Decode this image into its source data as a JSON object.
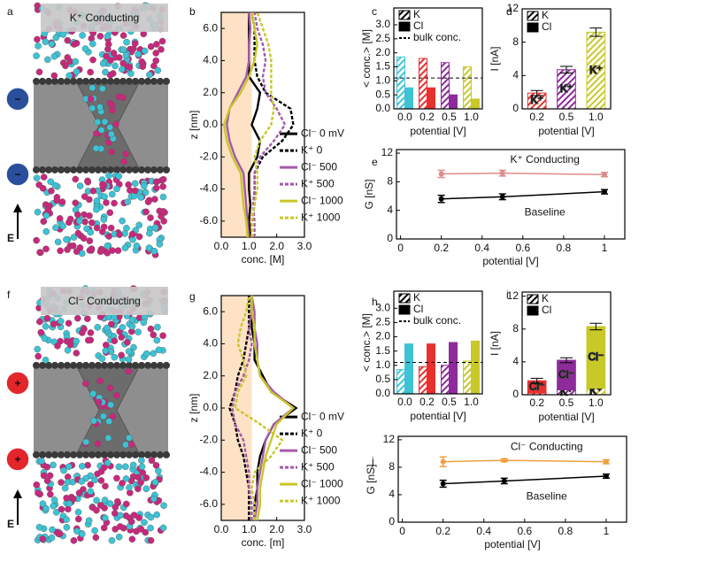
{
  "chart_data": [
    {
      "type": "image",
      "panel": "a",
      "title": "K⁺ Conducting",
      "field_label": "E",
      "badge_sign": "−",
      "badge_color": "#2a4f9c"
    },
    {
      "type": "profile",
      "panel": "b",
      "xlabel": "conc. [M]",
      "ylabel": "z [nm]",
      "xlim": [
        0,
        3
      ],
      "xticks": [
        {
          "value": 0,
          "label": "0.0"
        },
        {
          "value": 1,
          "label": "1.0"
        },
        {
          "value": 2,
          "label": "2.0"
        },
        {
          "value": 3,
          "label": "3.0"
        }
      ],
      "ylim": [
        -7,
        7
      ],
      "yticks": [
        {
          "value": 6,
          "label": "6.0"
        },
        {
          "value": 4,
          "label": "4.0"
        },
        {
          "value": 2,
          "label": "2.0"
        },
        {
          "value": 0,
          "label": "0.0"
        },
        {
          "value": -2,
          "label": "-2.0"
        },
        {
          "value": -4,
          "label": "-4.0"
        },
        {
          "value": -6,
          "label": "-6.0"
        }
      ],
      "shade": {
        "x": [
          0,
          1.1
        ],
        "color": "#fde2c6"
      },
      "z": [
        -7,
        -6,
        -5,
        -4,
        -3,
        -2,
        -1,
        0,
        1,
        2,
        3,
        4,
        5,
        6,
        7
      ],
      "series": [
        {
          "name": "Cl⁻ 0 mV",
          "color": "#000000",
          "dash": false,
          "values": [
            1.05,
            1.0,
            1.05,
            1.0,
            1.0,
            1.3,
            1.4,
            1.1,
            1.3,
            1.4,
            1.0,
            1.0,
            1.0,
            1.0,
            1.0
          ]
        },
        {
          "name": "K⁺ 0",
          "color": "#000000",
          "dash": true,
          "values": [
            1.05,
            1.1,
            1.2,
            1.2,
            1.2,
            1.5,
            2.2,
            2.6,
            2.5,
            1.6,
            1.3,
            1.2,
            1.2,
            1.2,
            1.1
          ]
        },
        {
          "name": "Cl⁻ 500",
          "color": "#a45aa8",
          "dash": false,
          "values": [
            1.0,
            0.95,
            0.9,
            0.85,
            0.8,
            0.5,
            0.3,
            0.2,
            0.3,
            0.6,
            0.9,
            1.0,
            1.0,
            1.05,
            1.0
          ]
        },
        {
          "name": "K⁺ 500",
          "color": "#a45aa8",
          "dash": true,
          "values": [
            1.2,
            1.2,
            1.15,
            1.2,
            1.2,
            1.4,
            1.9,
            2.3,
            2.0,
            1.6,
            1.5,
            1.6,
            1.5,
            1.3,
            1.2
          ]
        },
        {
          "name": "Cl⁻ 1000",
          "color": "#c9c62a",
          "dash": false,
          "values": [
            0.95,
            0.9,
            0.8,
            0.75,
            0.7,
            0.4,
            0.2,
            0.1,
            0.3,
            0.7,
            1.0,
            1.2,
            1.3,
            1.2,
            1.1
          ]
        },
        {
          "name": "K⁺ 1000",
          "color": "#c9c62a",
          "dash": true,
          "values": [
            1.1,
            1.1,
            1.2,
            1.3,
            1.3,
            1.2,
            1.4,
            1.8,
            1.9,
            1.8,
            1.8,
            1.8,
            1.7,
            1.5,
            1.3
          ]
        }
      ]
    },
    {
      "type": "bar",
      "panel": "c",
      "xlabel": "potential [V]",
      "ylabel": "< conc.> [M]",
      "categories": [
        "0.0",
        "0.2",
        "0.5",
        "1.0"
      ],
      "category_colors": [
        "#3ec3d5",
        "#e8302e",
        "#8e2a9a",
        "#c8c829"
      ],
      "ylim": [
        0,
        3.6
      ],
      "yticks": [
        {
          "value": 0,
          "label": "0.0"
        },
        0.5,
        {
          "value": 1,
          "label": "1.0"
        },
        1.5,
        {
          "value": 2,
          "label": "2.0"
        },
        2.5,
        {
          "value": 3,
          "label": "3.0"
        }
      ],
      "series": [
        {
          "name": "K",
          "pattern": "hatch",
          "values": [
            1.85,
            1.8,
            1.65,
            1.5
          ]
        },
        {
          "name": "Cl",
          "pattern": "solid",
          "values": [
            0.75,
            0.75,
            0.5,
            0.35
          ]
        }
      ],
      "reference": {
        "label": "bulk conc.",
        "value": 1.1
      }
    },
    {
      "type": "stacked_bar",
      "panel": "d",
      "xlabel": "potential [V]",
      "ylabel": "I [nA]",
      "categories": [
        "0.2",
        "0.5",
        "1.0"
      ],
      "category_colors": [
        "#e8302e",
        "#8e2a9a",
        "#c8c829"
      ],
      "ylim": [
        0,
        12
      ],
      "yticks": [
        0,
        4,
        8,
        12
      ],
      "series": [
        {
          "name": "K",
          "pattern": "hatch",
          "values": [
            1.9,
            4.7,
            9.2
          ],
          "labels": [
            "K⁺",
            "K⁺",
            "K⁺"
          ]
        },
        {
          "name": "Cl",
          "pattern": "solid",
          "values": [
            0,
            0,
            0
          ],
          "errors": [
            0.3,
            0.4,
            0.5
          ]
        }
      ]
    },
    {
      "type": "line",
      "panel": "e",
      "xlabel": "potential [V]",
      "ylabel": "G [nS]",
      "xlim": [
        -0.02,
        1.1
      ],
      "xticks": [
        0,
        0.2,
        0.4,
        0.6,
        0.8,
        1
      ],
      "ylim": [
        0,
        12.5
      ],
      "yticks": [
        0,
        4,
        8,
        12
      ],
      "x": [
        0.2,
        0.5,
        1
      ],
      "series": [
        {
          "name": "K⁺ Conducting",
          "color": "#e08a8a",
          "values": [
            9.1,
            9.2,
            9.0
          ],
          "errors": [
            0.5,
            0.4,
            0.3
          ]
        },
        {
          "name": "Baseline",
          "color": "#000000",
          "values": [
            5.6,
            5.9,
            6.6
          ],
          "errors": [
            0.5,
            0.4,
            0.3
          ]
        }
      ]
    },
    {
      "type": "image",
      "panel": "f",
      "title": "Cl⁻ Conducting",
      "field_label": "E",
      "badge_sign": "+",
      "badge_color": "#e3262b"
    },
    {
      "type": "profile",
      "panel": "g",
      "xlabel": "conc. [m]",
      "ylabel": "z [nm]",
      "xlim": [
        0,
        3
      ],
      "xticks": [
        {
          "value": 0,
          "label": "0.0"
        },
        {
          "value": 1,
          "label": "1.0"
        },
        {
          "value": 2,
          "label": "2.0"
        },
        {
          "value": 3,
          "label": "3.0"
        }
      ],
      "ylim": [
        -7,
        7
      ],
      "yticks": [
        {
          "value": 6,
          "label": "6.0"
        },
        {
          "value": 4,
          "label": "4.0"
        },
        {
          "value": 2,
          "label": "2.0"
        },
        {
          "value": 0,
          "label": "0.0"
        },
        {
          "value": -2,
          "label": "-2.0"
        },
        {
          "value": -4,
          "label": "-4.0"
        },
        {
          "value": -6,
          "label": "-6.0"
        }
      ],
      "shade": {
        "x": [
          0,
          1.1
        ],
        "color": "#fde2c6"
      },
      "z": [
        -7,
        -6,
        -5,
        -4,
        -3,
        -2,
        -1,
        0,
        1,
        2,
        3,
        4,
        5,
        6,
        7
      ],
      "series": [
        {
          "name": "Cl⁻ 0 mV",
          "color": "#000000",
          "dash": false,
          "values": [
            1.2,
            1.2,
            1.3,
            1.3,
            1.4,
            1.6,
            1.9,
            2.7,
            1.8,
            1.5,
            1.2,
            1.2,
            1.1,
            1.1,
            1.1
          ]
        },
        {
          "name": "K⁺ 0",
          "color": "#000000",
          "dash": true,
          "values": [
            1.0,
            1.0,
            1.0,
            0.9,
            0.8,
            0.6,
            0.5,
            0.3,
            0.5,
            0.6,
            0.8,
            0.9,
            1.0,
            1.0,
            1.0
          ]
        },
        {
          "name": "Cl⁻ 500",
          "color": "#a45aa8",
          "dash": false,
          "values": [
            1.2,
            1.3,
            1.3,
            1.4,
            1.5,
            1.6,
            1.9,
            2.6,
            1.9,
            1.4,
            1.3,
            1.3,
            1.2,
            1.2,
            1.1
          ]
        },
        {
          "name": "K⁺ 500",
          "color": "#a45aa8",
          "dash": true,
          "values": [
            1.1,
            1.1,
            1.0,
            1.0,
            0.9,
            0.8,
            0.5,
            0.4,
            0.5,
            0.8,
            1.0,
            1.1,
            1.0,
            1.1,
            1.1
          ]
        },
        {
          "name": "Cl⁻ 1000",
          "color": "#c9c62a",
          "dash": false,
          "values": [
            1.3,
            1.4,
            1.4,
            1.5,
            1.6,
            1.8,
            2.0,
            2.6,
            1.8,
            1.4,
            1.3,
            1.2,
            1.2,
            1.1,
            1.1
          ]
        },
        {
          "name": "K⁺ 1000",
          "color": "#c9c62a",
          "dash": true,
          "values": [
            1.2,
            1.2,
            1.1,
            1.2,
            1.8,
            2.2,
            1.4,
            0.5,
            0.6,
            0.9,
            0.8,
            0.6,
            0.7,
            0.9,
            1.0
          ]
        }
      ]
    },
    {
      "type": "bar",
      "panel": "h",
      "xlabel": "potential [V]",
      "ylabel": "< conc.> [M]",
      "categories": [
        "0.0",
        "0.2",
        "0.5",
        "1.0"
      ],
      "category_colors": [
        "#3ec3d5",
        "#e8302e",
        "#8e2a9a",
        "#c8c829"
      ],
      "ylim": [
        0,
        3.6
      ],
      "yticks": [
        {
          "value": 0,
          "label": "0.0"
        },
        0.5,
        {
          "value": 1,
          "label": "1.0"
        },
        1.5,
        {
          "value": 2,
          "label": "2.0"
        },
        2.5,
        {
          "value": 3,
          "label": "3.0"
        }
      ],
      "series": [
        {
          "name": "K",
          "pattern": "hatch",
          "values": [
            0.85,
            0.95,
            1.0,
            1.15
          ]
        },
        {
          "name": "Cl",
          "pattern": "solid",
          "values": [
            1.75,
            1.75,
            1.8,
            1.85
          ]
        }
      ],
      "reference": {
        "label": "bulk conc.",
        "value": 1.1
      }
    },
    {
      "type": "stacked_bar",
      "panel": "i",
      "xlabel": "potential [V]",
      "ylabel": "I [nA]",
      "categories": [
        "0.2",
        "0.5",
        "1.0"
      ],
      "category_colors": [
        "#e8302e",
        "#8e2a9a",
        "#c8c829"
      ],
      "ylim": [
        0,
        12.5
      ],
      "yticks": [
        0,
        4,
        8,
        12
      ],
      "series": [
        {
          "name": "K",
          "pattern": "hatch",
          "values": [
            0.2,
            0.6,
            0.8
          ],
          "labels": [
            null,
            "K⁺",
            "K⁺"
          ]
        },
        {
          "name": "Cl",
          "pattern": "solid",
          "values": [
            1.5,
            3.6,
            7.5
          ],
          "labels": [
            "Cl⁻",
            "Cl⁻",
            "Cl⁻"
          ],
          "errors": [
            0.3,
            0.3,
            0.4
          ]
        }
      ]
    },
    {
      "type": "line",
      "panel": "j",
      "xlabel": "potential [V]",
      "ylabel": "G [nS]",
      "xlim": [
        -0.02,
        1.1
      ],
      "xticks": [
        0,
        0.2,
        0.4,
        0.6,
        0.8,
        1
      ],
      "ylim": [
        0,
        12.5
      ],
      "yticks": [
        0,
        4,
        8,
        12
      ],
      "x": [
        0.2,
        0.5,
        1
      ],
      "series": [
        {
          "name": "Cl⁻ Conducting",
          "color": "#f0a040",
          "values": [
            8.8,
            9.0,
            8.8
          ],
          "errors": [
            0.7,
            0.2,
            0.3
          ]
        },
        {
          "name": "Baseline",
          "color": "#000000",
          "values": [
            5.6,
            6.0,
            6.7
          ],
          "errors": [
            0.5,
            0.4,
            0.3
          ]
        }
      ]
    }
  ]
}
